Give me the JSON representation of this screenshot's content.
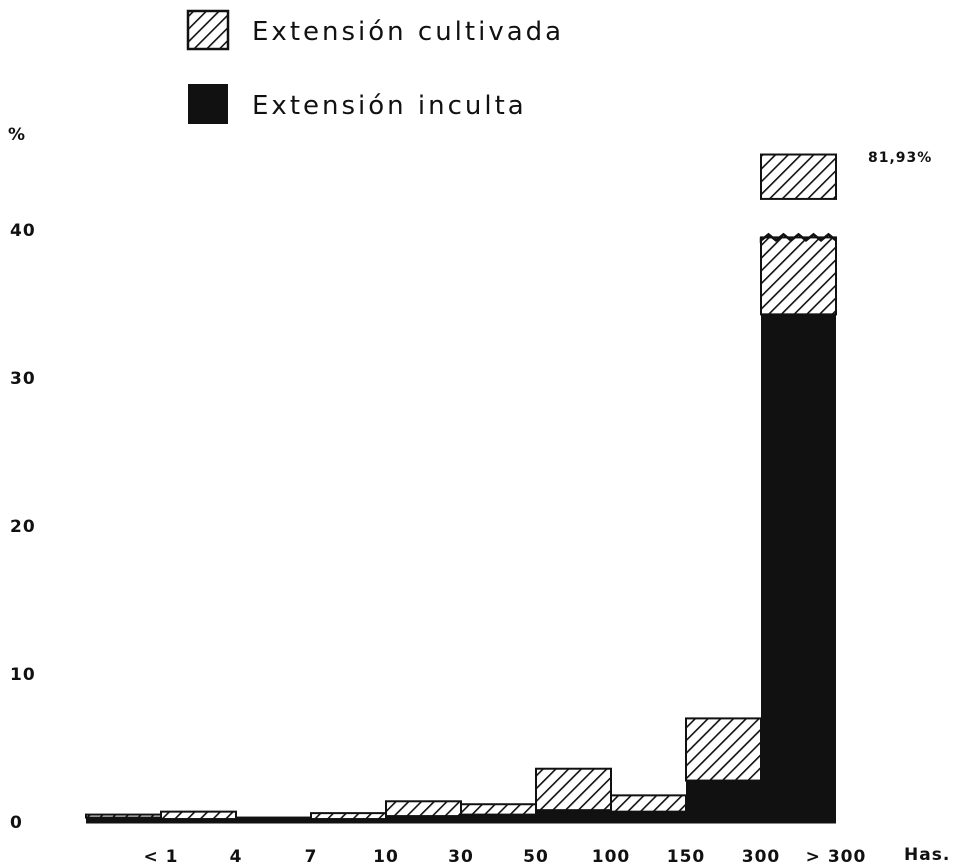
{
  "chart_data": {
    "type": "bar",
    "stacked": true,
    "y_unit_label": "%",
    "yticks": [
      0,
      10,
      20,
      30,
      40
    ],
    "ylim": [
      0,
      45
    ],
    "x_boundaries": [
      "< 1",
      "4",
      "7",
      "10",
      "30",
      "50",
      "100",
      "150",
      "300",
      "> 300"
    ],
    "x_unit_label": "Has.",
    "axis_break": true,
    "overflow_annotation": "81,93%",
    "legend": [
      {
        "label": "Extensión cultivada",
        "pattern": "hatch"
      },
      {
        "label": "Extensión inculta",
        "pattern": "solid"
      }
    ],
    "legend_position": "top-center",
    "series": [
      {
        "name": "Extensión inculta",
        "pattern": "solid",
        "values": [
          0.3,
          0.2,
          0.2,
          0.2,
          0.4,
          0.5,
          0.8,
          0.7,
          2.8,
          34.3
        ]
      },
      {
        "name": "Extensión cultivada",
        "pattern": "hatch",
        "values": [
          0.2,
          0.5,
          0.1,
          0.4,
          1.0,
          0.7,
          2.8,
          1.1,
          4.2,
          47.63
        ]
      }
    ],
    "colors": {
      "ink": "#111111",
      "background": "#ffffff"
    }
  }
}
